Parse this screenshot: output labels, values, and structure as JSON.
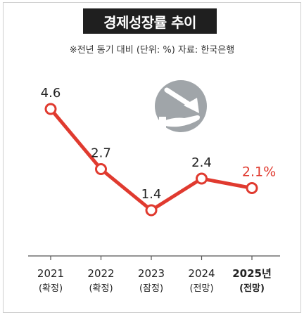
{
  "title": "경제성장률 추이",
  "subtitle": "※전년 동기 대비 (단위: %) 자료: 한국은행",
  "icon": "economy-decline-hand-icon",
  "colors": {
    "line": "#e03a2f",
    "marker_fill": "#ffffff",
    "highlight_label": "#e03a2f",
    "text": "#222222",
    "title_bg": "#1f1f1f",
    "axis": "#555555",
    "icon_bg": "#a0a5a9"
  },
  "chart_data": {
    "type": "line",
    "title": "경제성장률 추이",
    "categories": [
      "2021",
      "2022",
      "2023",
      "2024",
      "2025년"
    ],
    "category_notes": [
      "(확정)",
      "(확정)",
      "(잠정)",
      "(전망)",
      "(전망)"
    ],
    "value_labels": [
      "4.6",
      "2.7",
      "1.4",
      "2.4",
      "2.1%"
    ],
    "values": [
      4.6,
      2.7,
      1.4,
      2.4,
      2.1
    ],
    "highlight_index": 4,
    "ylim": [
      1.4,
      4.6
    ],
    "grid": false,
    "xlabel": "",
    "ylabel": ""
  }
}
